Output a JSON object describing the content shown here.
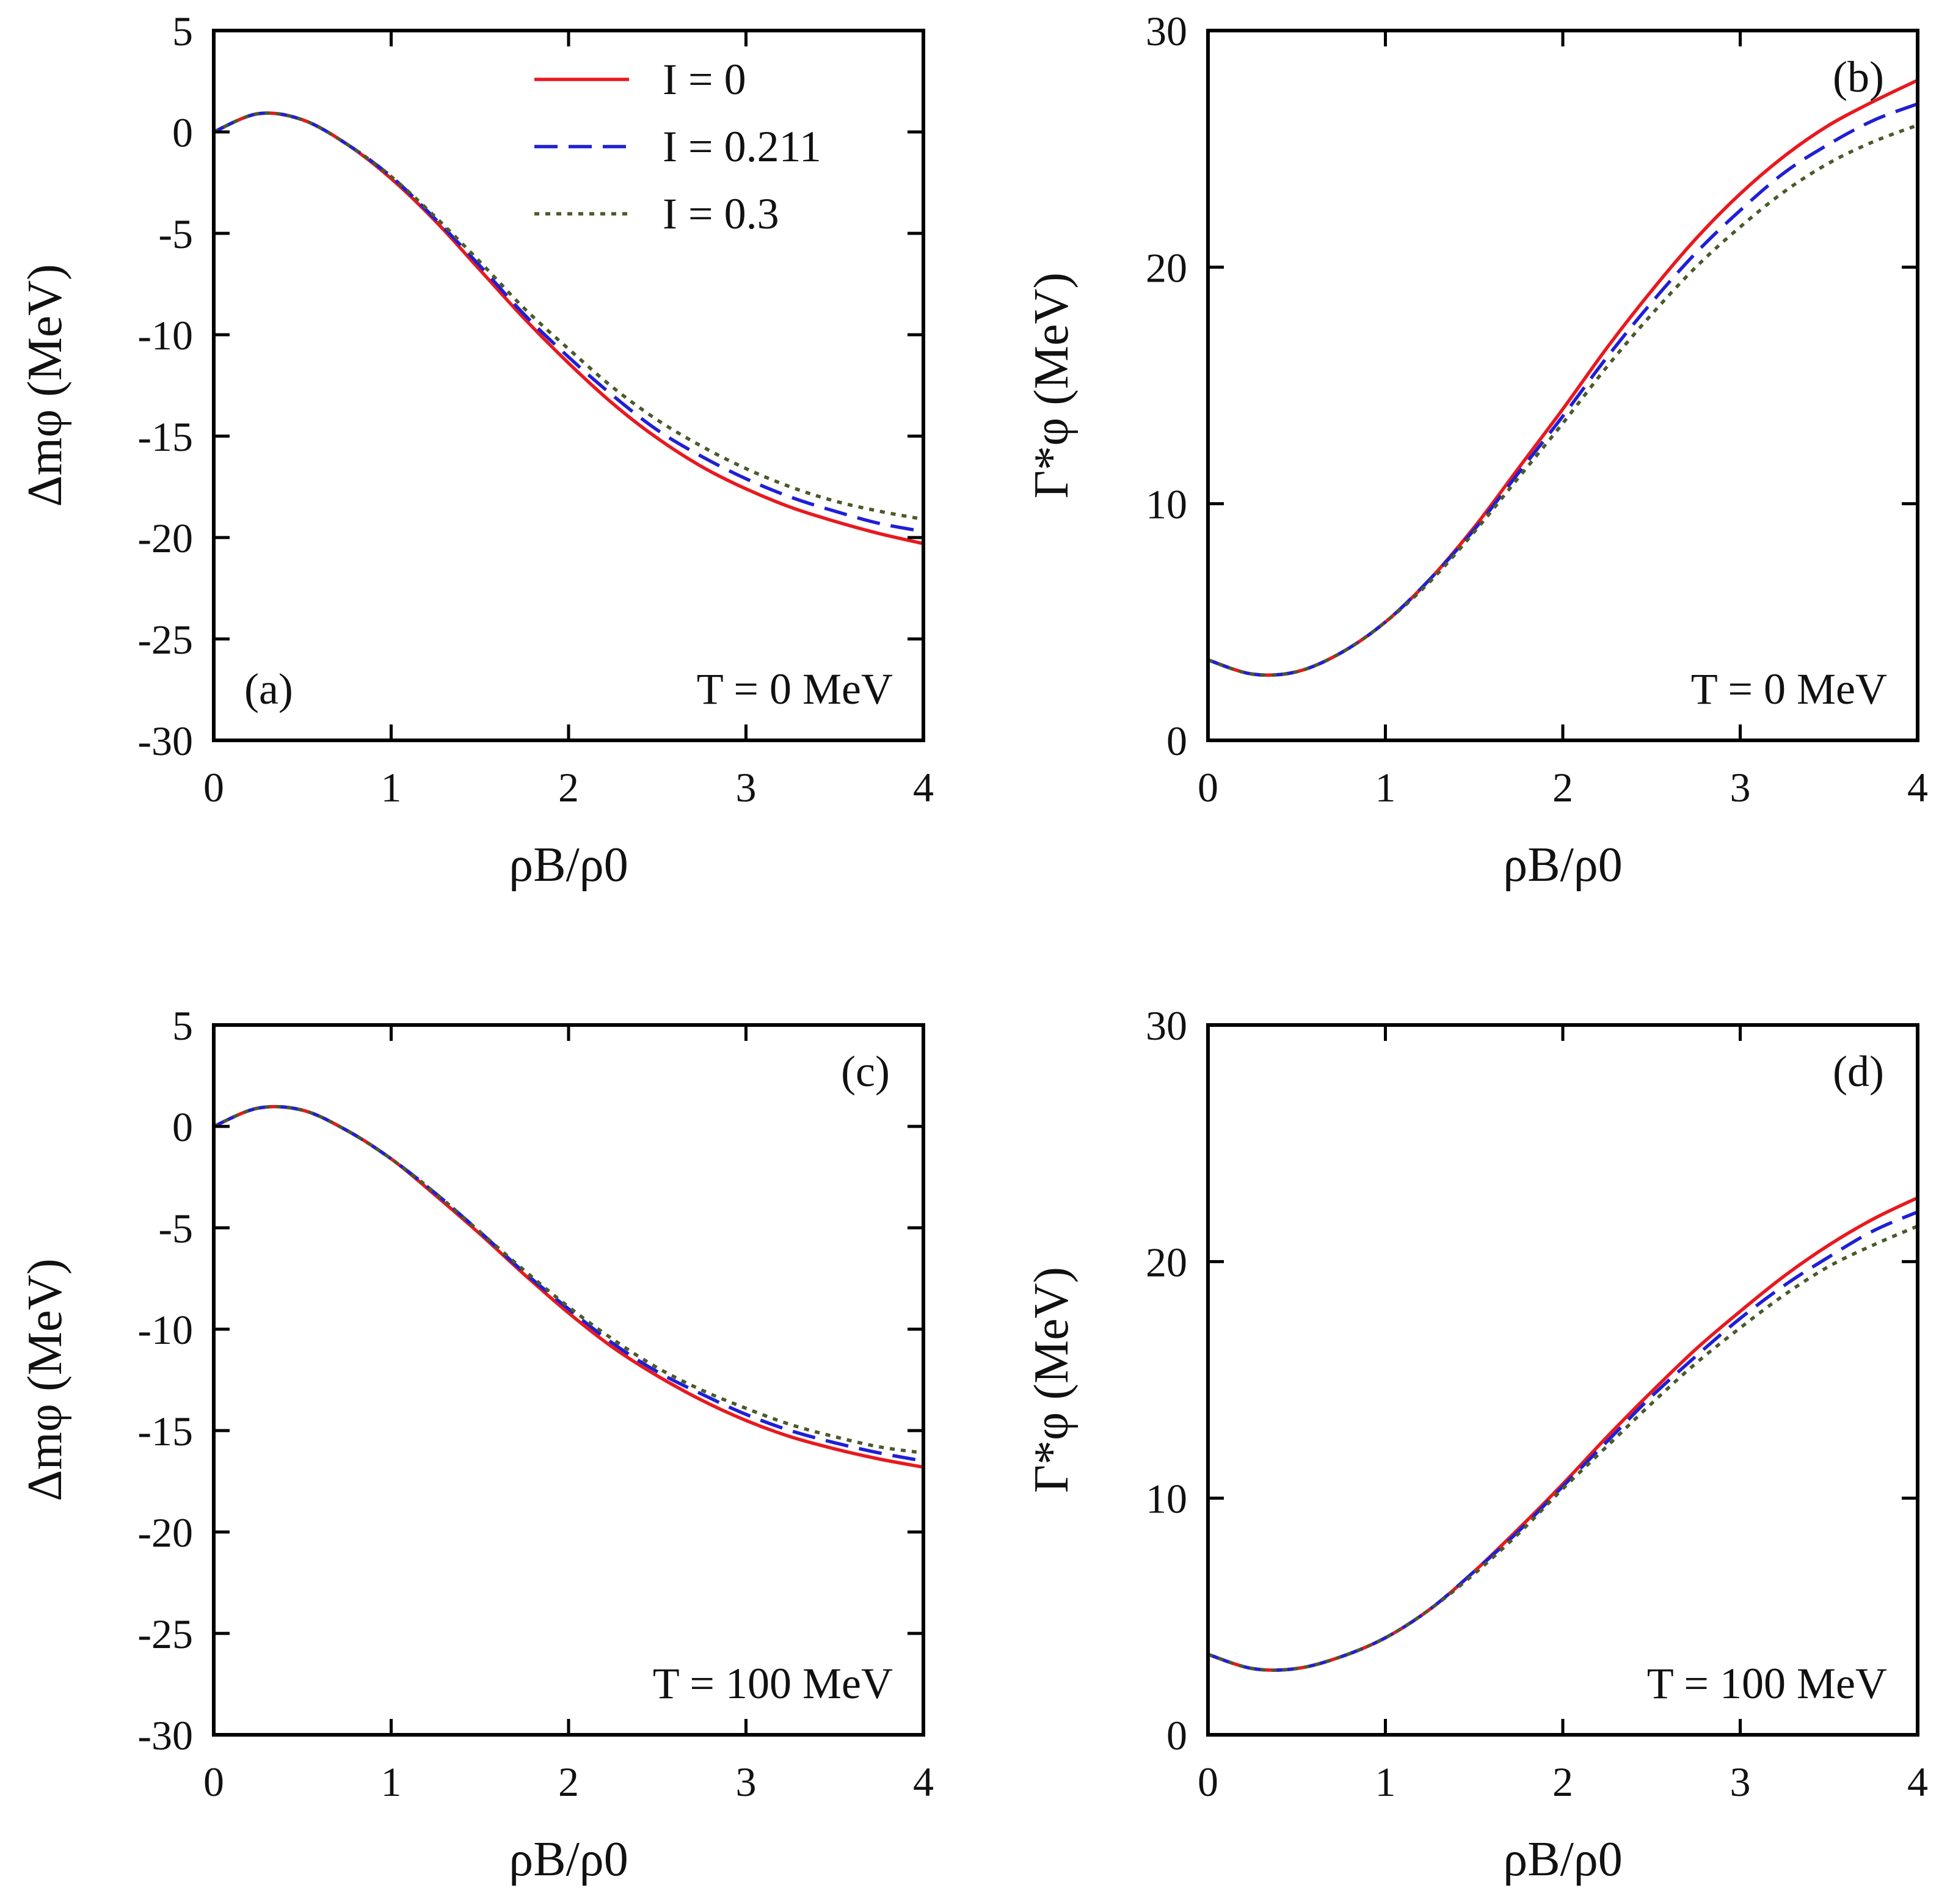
{
  "figure": {
    "legend": [
      {
        "label": "I =  0",
        "color": "#e8191f",
        "dash": "solid"
      },
      {
        "label": "I =  0.211",
        "color": "#1f1fd6",
        "dash": "dashed"
      },
      {
        "label": "I =  0.3",
        "color": "#4a5a2a",
        "dash": "dotted"
      }
    ]
  },
  "chart_data": [
    {
      "type": "line",
      "panel": "(a)",
      "annotation": "T = 0 MeV",
      "xlabel": "ρB/ρ0",
      "ylabel": "Δmφ (MeV)",
      "xlim": [
        0,
        4
      ],
      "ylim": [
        -30,
        5
      ],
      "xticks": [
        0,
        1,
        2,
        3,
        4
      ],
      "yticks": [
        5,
        0,
        -5,
        -10,
        -15,
        -20,
        -25,
        -30
      ],
      "x": [
        0,
        0.25,
        0.5,
        0.75,
        1,
        1.25,
        1.5,
        1.75,
        2,
        2.25,
        2.5,
        2.75,
        3,
        3.25,
        3.5,
        3.75,
        4
      ],
      "series": [
        {
          "name": "I =  0",
          "color": "#e8191f",
          "dash": "solid",
          "values": [
            0,
            0.9,
            0.6,
            -0.6,
            -2.3,
            -4.4,
            -6.8,
            -9.2,
            -11.4,
            -13.4,
            -15.1,
            -16.5,
            -17.6,
            -18.5,
            -19.2,
            -19.8,
            -20.3
          ]
        },
        {
          "name": "I =  0.211",
          "color": "#1f1fd6",
          "dash": "dashed",
          "values": [
            0,
            0.9,
            0.6,
            -0.6,
            -2.2,
            -4.3,
            -6.6,
            -9.0,
            -11.1,
            -13.0,
            -14.7,
            -16.0,
            -17.1,
            -18.0,
            -18.7,
            -19.3,
            -19.7
          ]
        },
        {
          "name": "I =  0.3",
          "color": "#4a5a2a",
          "dash": "dotted",
          "values": [
            0,
            0.9,
            0.6,
            -0.6,
            -2.2,
            -4.2,
            -6.4,
            -8.7,
            -10.7,
            -12.6,
            -14.2,
            -15.5,
            -16.6,
            -17.5,
            -18.2,
            -18.7,
            -19.1
          ]
        }
      ]
    },
    {
      "type": "line",
      "panel": "(b)",
      "annotation": "T = 0 MeV",
      "xlabel": "ρB/ρ0",
      "ylabel": "Γ*φ (MeV)",
      "xlim": [
        0,
        4
      ],
      "ylim": [
        0,
        30
      ],
      "xticks": [
        0,
        1,
        2,
        3,
        4
      ],
      "yticks": [
        0,
        10,
        20,
        30
      ],
      "x": [
        0,
        0.25,
        0.5,
        0.75,
        1,
        1.25,
        1.5,
        1.75,
        2,
        2.25,
        2.5,
        2.75,
        3,
        3.25,
        3.5,
        3.75,
        4
      ],
      "series": [
        {
          "name": "I =  0",
          "color": "#e8191f",
          "dash": "solid",
          "values": [
            3.4,
            2.8,
            2.9,
            3.7,
            5.0,
            6.8,
            9.0,
            11.5,
            14.0,
            16.6,
            19.0,
            21.2,
            23.1,
            24.7,
            26.0,
            27.0,
            27.9
          ]
        },
        {
          "name": "I =  0.211",
          "color": "#1f1fd6",
          "dash": "dashed",
          "values": [
            3.4,
            2.8,
            2.9,
            3.7,
            5.0,
            6.8,
            8.9,
            11.3,
            13.7,
            16.2,
            18.5,
            20.6,
            22.4,
            24.0,
            25.2,
            26.2,
            26.9
          ]
        },
        {
          "name": "I =  0.3",
          "color": "#4a5a2a",
          "dash": "dotted",
          "values": [
            3.4,
            2.8,
            2.9,
            3.7,
            5.0,
            6.7,
            8.8,
            11.1,
            13.4,
            15.8,
            18.0,
            20.0,
            21.7,
            23.2,
            24.4,
            25.3,
            26.0
          ]
        }
      ]
    },
    {
      "type": "line",
      "panel": "(c)",
      "annotation": "T = 100 MeV",
      "xlabel": "ρB/ρ0",
      "ylabel": "Δmφ (MeV)",
      "xlim": [
        0,
        4
      ],
      "ylim": [
        -30,
        5
      ],
      "xticks": [
        0,
        1,
        2,
        3,
        4
      ],
      "yticks": [
        5,
        0,
        -5,
        -10,
        -15,
        -20,
        -25,
        -30
      ],
      "x": [
        0,
        0.25,
        0.5,
        0.75,
        1,
        1.25,
        1.5,
        1.75,
        2,
        2.25,
        2.5,
        2.75,
        3,
        3.25,
        3.5,
        3.75,
        4
      ],
      "series": [
        {
          "name": "I =  0",
          "color": "#e8191f",
          "dash": "solid",
          "values": [
            0,
            0.9,
            0.8,
            -0.2,
            -1.6,
            -3.4,
            -5.3,
            -7.3,
            -9.2,
            -10.9,
            -12.3,
            -13.5,
            -14.5,
            -15.3,
            -15.9,
            -16.4,
            -16.8
          ]
        },
        {
          "name": "I =  0.211",
          "color": "#1f1fd6",
          "dash": "dashed",
          "values": [
            0,
            0.9,
            0.8,
            -0.2,
            -1.6,
            -3.3,
            -5.2,
            -7.2,
            -9.0,
            -10.7,
            -12.1,
            -13.2,
            -14.2,
            -15.0,
            -15.6,
            -16.1,
            -16.5
          ]
        },
        {
          "name": "I =  0.3",
          "color": "#4a5a2a",
          "dash": "dotted",
          "values": [
            0,
            0.9,
            0.8,
            -0.2,
            -1.6,
            -3.3,
            -5.2,
            -7.1,
            -8.9,
            -10.5,
            -11.9,
            -13.0,
            -13.9,
            -14.7,
            -15.3,
            -15.8,
            -16.1
          ]
        }
      ]
    },
    {
      "type": "line",
      "panel": "(d)",
      "annotation": "T = 100 MeV",
      "xlabel": "ρB/ρ0",
      "ylabel": "Γ*φ (MeV)",
      "xlim": [
        0,
        4
      ],
      "ylim": [
        0,
        30
      ],
      "xticks": [
        0,
        1,
        2,
        3,
        4
      ],
      "yticks": [
        0,
        10,
        20,
        30
      ],
      "x": [
        0,
        0.25,
        0.5,
        0.75,
        1,
        1.25,
        1.5,
        1.75,
        2,
        2.25,
        2.5,
        2.75,
        3,
        3.25,
        3.5,
        3.75,
        4
      ],
      "series": [
        {
          "name": "I =  0",
          "color": "#e8191f",
          "dash": "solid",
          "values": [
            3.4,
            2.8,
            2.8,
            3.3,
            4.1,
            5.3,
            6.9,
            8.7,
            10.6,
            12.6,
            14.5,
            16.3,
            17.9,
            19.4,
            20.7,
            21.8,
            22.7
          ]
        },
        {
          "name": "I =  0.211",
          "color": "#1f1fd6",
          "dash": "dashed",
          "values": [
            3.4,
            2.8,
            2.8,
            3.3,
            4.1,
            5.3,
            6.9,
            8.6,
            10.5,
            12.4,
            14.3,
            16.0,
            17.6,
            19.0,
            20.2,
            21.3,
            22.1
          ]
        },
        {
          "name": "I =  0.3",
          "color": "#4a5a2a",
          "dash": "dotted",
          "values": [
            3.4,
            2.8,
            2.8,
            3.3,
            4.1,
            5.3,
            6.8,
            8.5,
            10.4,
            12.2,
            14.0,
            15.7,
            17.2,
            18.6,
            19.8,
            20.7,
            21.5
          ]
        }
      ]
    }
  ]
}
